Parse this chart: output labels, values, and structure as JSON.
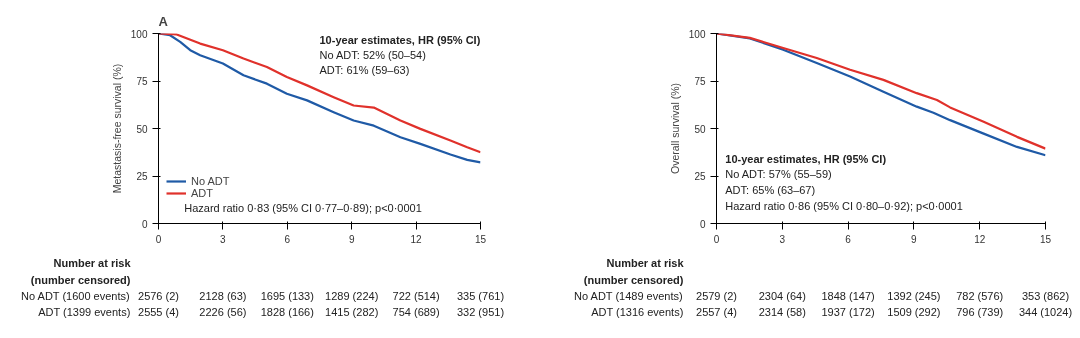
{
  "chart_data": [
    {
      "type": "line",
      "title": "A",
      "ylabel": "Metastasis-free survival (%)",
      "xlim": [
        0,
        15
      ],
      "ylim": [
        0,
        100
      ],
      "xticks": [
        0,
        3,
        6,
        9,
        12,
        15
      ],
      "yticks": [
        0,
        25,
        50,
        75,
        100
      ],
      "grid": false,
      "legend": "bottom left",
      "marker": "none",
      "line_style": "solid",
      "series": [
        {
          "name": "No ADT",
          "color": "#1f5aa6",
          "x": [
            0,
            0.54,
            1.01,
            1.48,
            1.94,
            3.0,
            3.96,
            5.05,
            5.98,
            6.92,
            8.16,
            9.09,
            10.03,
            11.27,
            12.2,
            13.6,
            14.38,
            15
          ],
          "values": [
            100,
            99.1,
            95.6,
            91.2,
            88.6,
            84.2,
            78,
            73.6,
            68.3,
            64.8,
            58.6,
            54.2,
            51.5,
            45.4,
            41.9,
            36.3,
            33.5,
            32.2
          ]
        },
        {
          "name": "ADT",
          "color": "#e0312b",
          "x": [
            0,
            0.85,
            1.94,
            3.0,
            3.96,
            5.05,
            5.98,
            6.92,
            8.16,
            9.09,
            10.03,
            11.27,
            12.2,
            13.6,
            14.38,
            15
          ],
          "values": [
            100,
            99.5,
            94.7,
            91.2,
            86.8,
            82.4,
            77.1,
            72.7,
            66.5,
            62.1,
            61,
            54.2,
            49.8,
            43.7,
            40.1,
            37.5
          ]
        }
      ],
      "annotations": [
        "10-year estimates, HR (95% CI)",
        "No ADT: 52% (50–54)",
        "ADT: 61% (59–63)",
        "Hazard ratio 0·83 (95% CI 0·77–0·89); p<0·0001",
        "Number at risk",
        "(number censored)",
        "No ADT (1600 events)",
        "2576 (2)",
        "2128 (63)",
        "1695 (133)",
        "1289 (224)",
        "722 (514)",
        "335 (761)",
        "ADT (1399 events)",
        "2555 (4)",
        "2226 (56)",
        "1828 (166)",
        "1415 (282)",
        "754 (689)",
        "332 (951)"
      ]
    },
    {
      "type": "line",
      "ylabel": "Overall survival (%)",
      "xlim": [
        0,
        15
      ],
      "ylim": [
        0,
        100
      ],
      "xticks": [
        0,
        3,
        6,
        9,
        12,
        15
      ],
      "yticks": [
        0,
        25,
        50,
        75,
        100
      ],
      "grid": false,
      "marker": "none",
      "line_style": "solid",
      "series": [
        {
          "color": "#1f5aa6",
          "x": [
            0,
            1.52,
            3.04,
            4.57,
            6.09,
            7.61,
            9.13,
            9.89,
            10.65,
            12.18,
            13.7,
            15
          ],
          "values": [
            100,
            97.4,
            91.5,
            84.5,
            77.4,
            69.4,
            61.5,
            58.3,
            54.4,
            47.3,
            40.3,
            35.9
          ]
        },
        {
          "color": "#e0312b",
          "x": [
            0,
            1.52,
            3.04,
            4.57,
            6.09,
            7.61,
            9.13,
            10.05,
            10.65,
            12.18,
            13.7,
            15
          ],
          "values": [
            100,
            97.7,
            92.4,
            87.1,
            80.9,
            75.6,
            68.6,
            65,
            61.1,
            53.5,
            45.6,
            39.4
          ]
        }
      ],
      "annotations": [
        "10-year estimates, HR (95% CI)",
        "No ADT: 57% (55–59)",
        "ADT: 65% (63–67)",
        "Hazard ratio 0·86 (95% CI 0·80–0·92); p<0·0001",
        "Number at risk",
        "(number censored)",
        "No ADT (1489 events)",
        "2579 (2)",
        "2304 (64)",
        "1848 (147)",
        "1392 (245)",
        "782 (576)",
        "353 (862)",
        "ADT (1316 events)",
        "2557 (4)",
        "2314 (58)",
        "1937 (172)",
        "1509 (292)",
        "796 (739)",
        "344 (1024)"
      ]
    }
  ]
}
